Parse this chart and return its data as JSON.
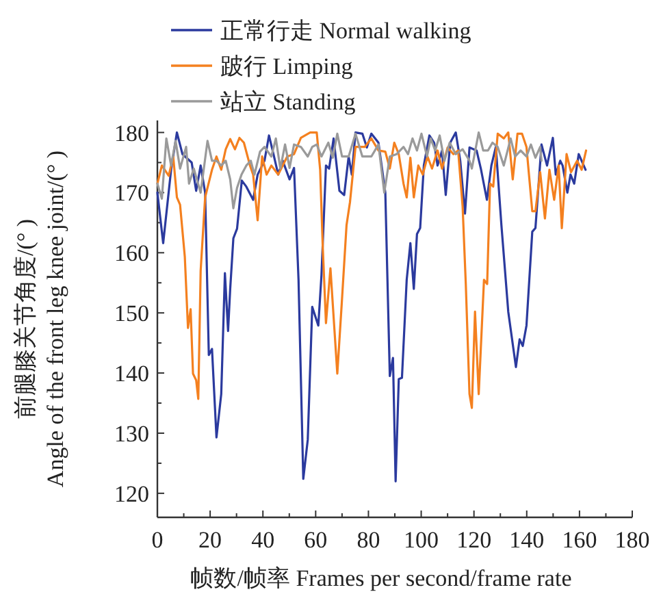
{
  "chart_data": {
    "type": "line",
    "xlabel": "帧数/帧率 Frames per second/frame rate",
    "ylabel": "前腿膝关节角度/(° )\nAngle of the front leg knee joint/(° )",
    "xlim": [
      0,
      180
    ],
    "ylim": [
      116,
      182
    ],
    "xticks": [
      0,
      {
        "value": 10,
        "label": null
      },
      20,
      {
        "value": 30,
        "label": null
      },
      40,
      {
        "value": 50,
        "label": null
      },
      60,
      {
        "value": 70,
        "label": null
      },
      80,
      {
        "value": 90,
        "label": null
      },
      100,
      {
        "value": 110,
        "label": null
      },
      120,
      {
        "value": 130,
        "label": null
      },
      140,
      {
        "value": 150,
        "label": null
      },
      160,
      {
        "value": 170,
        "label": null
      },
      180
    ],
    "yticks": [
      120,
      {
        "value": 125,
        "label": null
      },
      130,
      {
        "value": 135,
        "label": null
      },
      140,
      {
        "value": 145,
        "label": null
      },
      150,
      {
        "value": 155,
        "label": null
      },
      160,
      {
        "value": 165,
        "label": null
      },
      170,
      {
        "value": 175,
        "label": null
      },
      180
    ],
    "legend": "top",
    "grid": false,
    "marker": "none",
    "line_style": "solid",
    "series": [
      {
        "name": "正常行走 Normal walking",
        "color": "#2b3a9e",
        "x": [
          0,
          2.2,
          5.2,
          7.4,
          9.5,
          13,
          14.7,
          16.4,
          18.1,
          19.5,
          20.7,
          22.4,
          24.2,
          25.6,
          26.8,
          27.6,
          28.8,
          30.2,
          32,
          33.7,
          36.3,
          38,
          40.6,
          42.3,
          44,
          45.8,
          47.5,
          50.1,
          51.8,
          53.5,
          55.3,
          57,
          58.7,
          61,
          62.2,
          63.9,
          65.1,
          66.8,
          69,
          70.8,
          72.5,
          73.7,
          75.1,
          77.7,
          79.4,
          81.1,
          83.8,
          86.4,
          88.1,
          89.3,
          90.3,
          91.5,
          92.7,
          94.5,
          95.9,
          97.2,
          98.4,
          99.6,
          101,
          103.1,
          104.9,
          106.2,
          107.9,
          109.3,
          111,
          113.1,
          114.8,
          116.6,
          118.3,
          121,
          122.6,
          124.9,
          126.6,
          128.3,
          130.4,
          133,
          135.9,
          137.3,
          138.5,
          139.9,
          142.1,
          143.3,
          145.6,
          147.7,
          149.9,
          151,
          152.7,
          153.6,
          155.4,
          156.6,
          158,
          159.7,
          162.3
        ],
        "values": [
          170,
          161.6,
          173.8,
          180,
          176.4,
          175,
          170.3,
          174.5,
          170,
          143,
          144,
          129.3,
          136.5,
          156.6,
          147,
          154,
          162.4,
          164,
          172,
          171,
          168.8,
          173,
          175.3,
          179.5,
          176.4,
          173,
          175.3,
          172.2,
          174.1,
          155.5,
          122.4,
          128.9,
          151,
          147.9,
          156.3,
          174.5,
          174,
          179,
          170.3,
          169.6,
          176,
          173,
          180,
          179.8,
          177.5,
          179.8,
          178.3,
          170,
          139.5,
          142.5,
          122,
          139,
          139.2,
          155.5,
          161.6,
          154,
          163.1,
          164.1,
          174.5,
          179.5,
          178.3,
          174.5,
          177,
          169.6,
          178.3,
          180,
          175.3,
          166.5,
          177.5,
          177,
          174,
          168.8,
          174.5,
          177.6,
          164.6,
          150.2,
          141,
          145.6,
          144.5,
          147.9,
          163.5,
          164.1,
          178,
          174.5,
          179.1,
          173,
          175.3,
          174.5,
          170,
          173,
          171.5,
          176.4,
          173.8
        ]
      },
      {
        "name": "跛行 Limping",
        "color": "#f4801f",
        "x": [
          0,
          1.7,
          4.3,
          6,
          7.4,
          8.6,
          10.4,
          11.6,
          12.6,
          13.5,
          14.7,
          15.5,
          16.4,
          18.1,
          20.7,
          22.4,
          24.2,
          25.9,
          27.6,
          29.4,
          31.1,
          32.8,
          35.1,
          36.3,
          38,
          39.7,
          41.4,
          43.2,
          45.8,
          49.2,
          51.8,
          54.4,
          57.9,
          60.4,
          61.7,
          62.7,
          63.9,
          65.6,
          68.2,
          69.9,
          71.7,
          73,
          75.1,
          78.6,
          81.1,
          83.8,
          86.4,
          88.1,
          89.8,
          91.5,
          93.3,
          94.5,
          95.9,
          97.2,
          98.9,
          100.6,
          102.4,
          104.1,
          106.2,
          107.9,
          110,
          112.2,
          114,
          115.7,
          116.9,
          118.3,
          119.2,
          120.4,
          121.8,
          123.8,
          125,
          126.1,
          127.3,
          129,
          131.3,
          133,
          134.7,
          136.5,
          138.2,
          139.9,
          142.1,
          143.3,
          145.1,
          146.9,
          148.6,
          150.4,
          152.1,
          153.3,
          155.1,
          156.8,
          159.1,
          160.8,
          162.5
        ],
        "values": [
          171.5,
          174.5,
          172.8,
          176,
          169.2,
          168,
          159.3,
          147.5,
          150.6,
          139.9,
          138.8,
          135.7,
          157,
          169.2,
          173.8,
          176,
          173.8,
          177.2,
          178.9,
          177.2,
          179.1,
          178.3,
          174.5,
          173,
          165.4,
          176,
          173,
          174.5,
          173,
          176,
          176.4,
          179.1,
          180,
          180,
          173.8,
          160.8,
          148.3,
          157.4,
          139.9,
          151.7,
          164.6,
          168.4,
          177.6,
          177.6,
          179,
          177,
          176.8,
          174,
          178.3,
          176.4,
          171.5,
          169.2,
          175.8,
          169.2,
          174.5,
          173,
          176,
          174,
          177,
          174,
          177.5,
          176.4,
          177,
          167.7,
          154.8,
          136.5,
          134.2,
          150.2,
          136.5,
          155.5,
          154.8,
          171.5,
          171,
          179.8,
          179,
          180,
          172.2,
          179.8,
          179.8,
          177.6,
          166.9,
          166.9,
          173.4,
          165.7,
          173.8,
          168.8,
          174.5,
          164.1,
          176.4,
          173.4,
          175.3,
          173.8,
          177
        ]
      },
      {
        "name": "站立 Standing",
        "color": "#9a9a9a",
        "x": [
          0,
          1.7,
          3.4,
          5.2,
          6.9,
          8.6,
          10.9,
          12,
          13.8,
          16.4,
          19,
          20.7,
          22.4,
          24.2,
          25.9,
          27.6,
          28.8,
          30.2,
          31.9,
          33.7,
          35.4,
          36.8,
          38.9,
          40.6,
          43.2,
          44.9,
          46.6,
          48.4,
          50.1,
          51.8,
          54.4,
          57,
          58.7,
          60.4,
          62.2,
          64.8,
          66.5,
          68.2,
          70,
          72.5,
          75.1,
          77.7,
          81.1,
          83.8,
          86,
          88.1,
          90.7,
          93.3,
          95,
          96.7,
          98.4,
          100.1,
          102.2,
          103.6,
          105.3,
          107,
          108.8,
          110.8,
          113.1,
          115.7,
          118.3,
          119.2,
          121.8,
          123.5,
          125.3,
          127,
          129,
          131.3,
          133.9,
          135.6,
          137.7,
          139.9,
          141.6,
          143.3,
          145.1,
          145.6
        ],
        "values": [
          171.5,
          169,
          179,
          174.5,
          178.6,
          174,
          177.6,
          171.5,
          174,
          170,
          178.6,
          175.3,
          175.3,
          174.5,
          175.3,
          172.2,
          167.4,
          170.8,
          173,
          174.5,
          175.3,
          173,
          176.8,
          177.6,
          176,
          179,
          174,
          178,
          174.1,
          178,
          177.6,
          176,
          177.6,
          178,
          176,
          178.3,
          175.8,
          179.8,
          176,
          176,
          179.8,
          176,
          176,
          178,
          170,
          176,
          176.4,
          177.6,
          176.4,
          179,
          177,
          179.8,
          176,
          179,
          177,
          179.5,
          175.3,
          178.3,
          176.4,
          177.2,
          175.3,
          174,
          180,
          177,
          177,
          178.3,
          177.6,
          174.5,
          179,
          176,
          177,
          176,
          178,
          175.8,
          177.6,
          175.3
        ]
      }
    ]
  }
}
